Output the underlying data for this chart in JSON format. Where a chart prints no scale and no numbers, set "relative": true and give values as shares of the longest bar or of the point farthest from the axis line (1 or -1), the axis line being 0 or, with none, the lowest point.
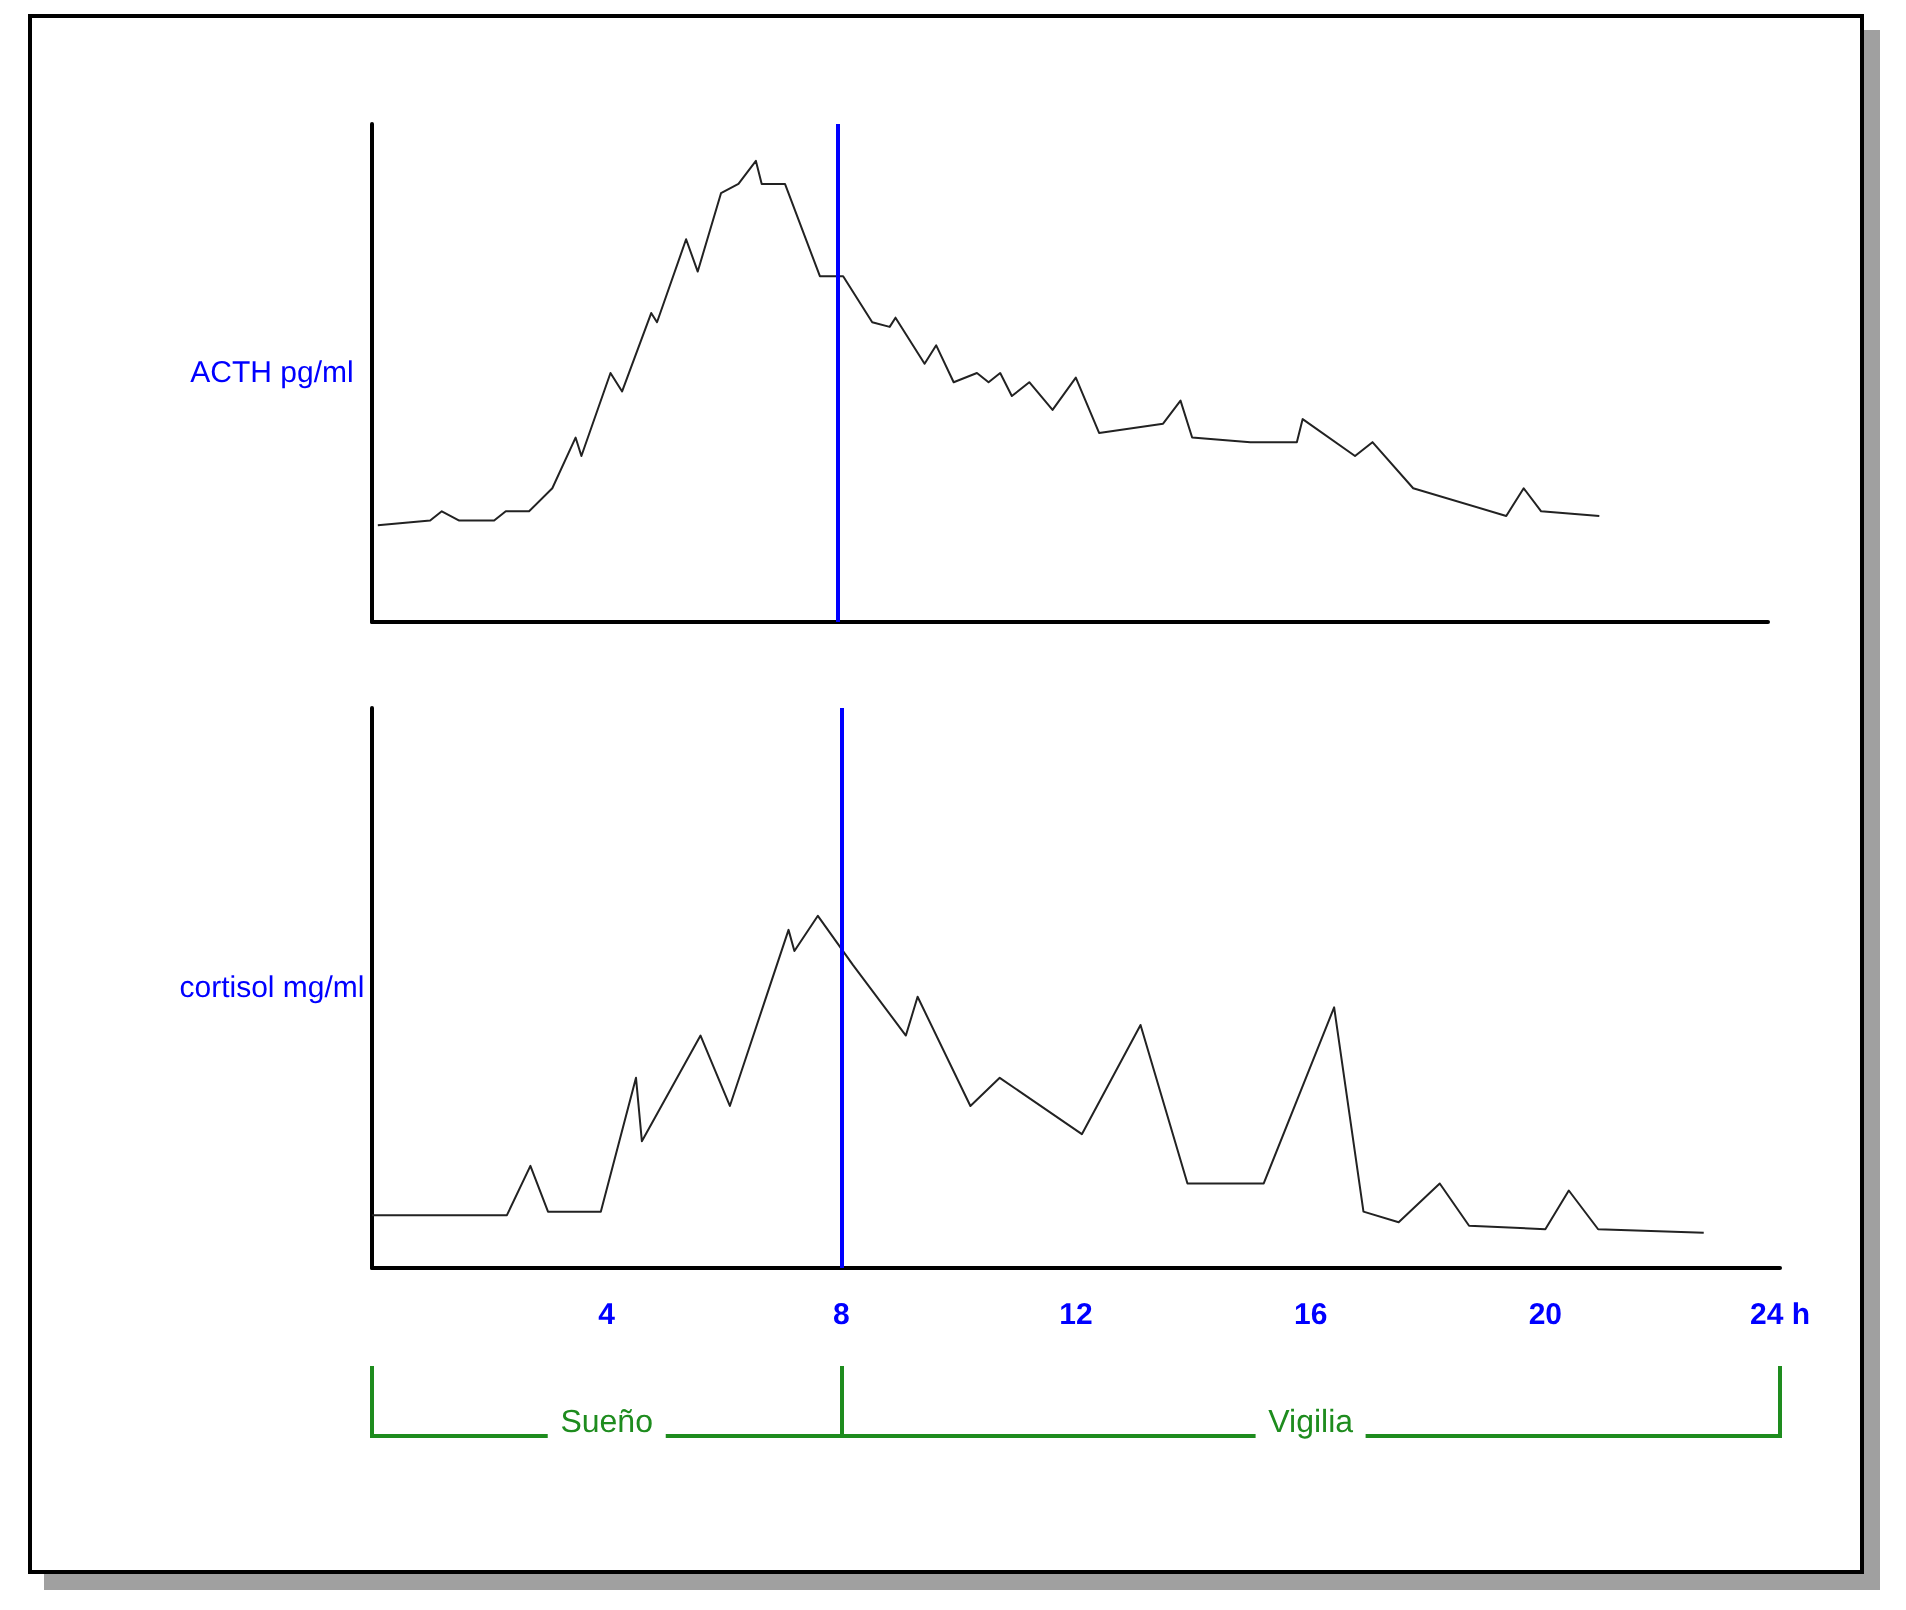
{
  "chart_data": [
    {
      "type": "line",
      "ylabel": "ACTH pg/ml",
      "relative": true,
      "xlim": [
        0,
        24
      ],
      "tick_labels": false,
      "marker": "none",
      "line_style": "solid",
      "ref_lines": [
        {
          "axis": "x",
          "value": 8,
          "color": "#0000ff"
        }
      ],
      "series": [
        {
          "color": "#222222",
          "x": [
            0.1,
            1.0,
            1.2,
            1.5,
            2.1,
            2.3,
            2.7,
            3.1,
            3.5,
            3.6,
            4.1,
            4.3,
            4.8,
            4.9,
            5.4,
            5.6,
            6.0,
            6.3,
            6.6,
            6.7,
            7.1,
            7.7,
            8.1,
            8.6,
            8.9,
            9.0,
            9.5,
            9.7,
            10.0,
            10.4,
            10.6,
            10.8,
            11.0,
            11.3,
            11.7,
            12.1,
            12.5,
            13.6,
            13.9,
            14.1,
            15.1,
            15.9,
            16.0,
            16.9,
            17.2,
            17.9,
            19.5,
            19.8,
            20.1,
            21.1
          ],
          "values": [
            0.21,
            0.22,
            0.24,
            0.22,
            0.22,
            0.24,
            0.24,
            0.29,
            0.4,
            0.36,
            0.54,
            0.5,
            0.67,
            0.65,
            0.83,
            0.76,
            0.93,
            0.95,
            1.0,
            0.95,
            0.95,
            0.75,
            0.75,
            0.65,
            0.64,
            0.66,
            0.56,
            0.6,
            0.52,
            0.54,
            0.52,
            0.54,
            0.49,
            0.52,
            0.46,
            0.53,
            0.41,
            0.43,
            0.48,
            0.4,
            0.39,
            0.39,
            0.44,
            0.36,
            0.39,
            0.29,
            0.23,
            0.29,
            0.24,
            0.23
          ]
        }
      ]
    },
    {
      "type": "line",
      "ylabel": "cortisol mg/ml",
      "relative": true,
      "xlim": [
        0,
        24
      ],
      "tick_labels": "x",
      "marker": "none",
      "line_style": "solid",
      "xticks": [
        4,
        8,
        12,
        16,
        20,
        {
          "value": 24,
          "label": "24 h"
        }
      ],
      "ref_lines": [
        {
          "axis": "x",
          "value": 8,
          "color": "#0000ff"
        }
      ],
      "annotations": [
        "Sueño",
        "Vigilia"
      ],
      "series": [
        {
          "color": "#222222",
          "x": [
            0.0,
            2.3,
            2.7,
            3.0,
            3.9,
            4.5,
            4.6,
            5.6,
            6.1,
            7.1,
            7.2,
            7.6,
            8.2,
            9.1,
            9.3,
            10.2,
            10.7,
            12.1,
            13.1,
            13.9,
            15.2,
            16.4,
            16.9,
            17.5,
            18.2,
            18.7,
            20.0,
            20.4,
            20.9,
            22.7
          ],
          "values": [
            0.15,
            0.15,
            0.29,
            0.16,
            0.16,
            0.54,
            0.36,
            0.66,
            0.46,
            0.96,
            0.9,
            1.0,
            0.86,
            0.66,
            0.77,
            0.46,
            0.54,
            0.38,
            0.69,
            0.24,
            0.24,
            0.74,
            0.16,
            0.13,
            0.24,
            0.12,
            0.11,
            0.22,
            0.11,
            0.1
          ]
        }
      ]
    }
  ]
}
